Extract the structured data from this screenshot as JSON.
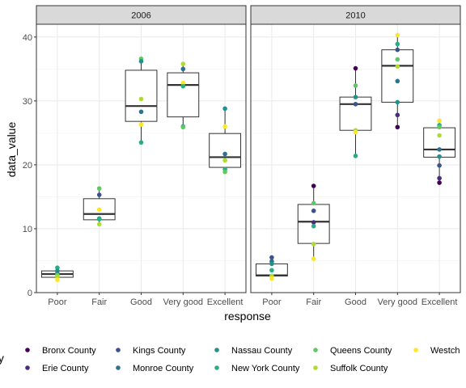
{
  "chart_data": {
    "type": "scatter",
    "overlay": "boxplot",
    "xlabel": "response",
    "ylabel": "data_value",
    "ylim": [
      0,
      42
    ],
    "yticks": [
      0,
      10,
      20,
      30,
      40
    ],
    "categories": [
      "Poor",
      "Fair",
      "Good",
      "Very good",
      "Excellent"
    ],
    "legend_position": "bottom",
    "legend_title": "ty",
    "grid": true,
    "series": [
      {
        "name": "Bronx County",
        "color": "#440154"
      },
      {
        "name": "Erie County",
        "color": "#472d7b"
      },
      {
        "name": "Kings County",
        "color": "#3b528b"
      },
      {
        "name": "Monroe County",
        "color": "#2c728e"
      },
      {
        "name": "Nassau County",
        "color": "#21918c"
      },
      {
        "name": "New York County",
        "color": "#28ae80"
      },
      {
        "name": "Queens County",
        "color": "#5ec962"
      },
      {
        "name": "Suffolk County",
        "color": "#addc30"
      },
      {
        "name": "Westch",
        "color": "#fde725"
      }
    ],
    "panels": [
      {
        "label": "2006",
        "boxes": [
          {
            "category": "Poor",
            "q1": 2.4,
            "median": 2.9,
            "q3": 3.4,
            "lower": 2.0,
            "upper": 3.9
          },
          {
            "category": "Fair",
            "q1": 11.4,
            "median": 12.3,
            "q3": 14.7,
            "lower": 10.7,
            "upper": 16.3
          },
          {
            "category": "Good",
            "q1": 26.8,
            "median": 29.2,
            "q3": 34.8,
            "lower": 23.5,
            "upper": 36.6
          },
          {
            "category": "Very good",
            "q1": 27.5,
            "median": 32.5,
            "q3": 34.4,
            "lower": 25.9,
            "upper": 35.8
          },
          {
            "category": "Excellent",
            "q1": 19.6,
            "median": 21.2,
            "q3": 24.9,
            "lower": 18.9,
            "upper": 28.8
          }
        ],
        "points": [
          {
            "category": "Poor",
            "county": "New York County",
            "value": 3.9
          },
          {
            "category": "Poor",
            "county": "Nassau County",
            "value": 3.4
          },
          {
            "category": "Poor",
            "county": "Monroe County",
            "value": 3.0
          },
          {
            "category": "Poor",
            "county": "Queens County",
            "value": 2.8
          },
          {
            "category": "Poor",
            "county": "Suffolk County",
            "value": 2.5
          },
          {
            "category": "Poor",
            "county": "Westch",
            "value": 2.0
          },
          {
            "category": "Fair",
            "county": "Queens County",
            "value": 16.3
          },
          {
            "category": "Fair",
            "county": "Kings County",
            "value": 15.3
          },
          {
            "category": "Fair",
            "county": "Westch",
            "value": 13.0
          },
          {
            "category": "Fair",
            "county": "Nassau County",
            "value": 11.6
          },
          {
            "category": "Fair",
            "county": "New York County",
            "value": 11.5
          },
          {
            "category": "Fair",
            "county": "Suffolk County",
            "value": 10.7
          },
          {
            "category": "Good",
            "county": "Queens County",
            "value": 36.6
          },
          {
            "category": "Good",
            "county": "Nassau County",
            "value": 36.2
          },
          {
            "category": "Good",
            "county": "Suffolk County",
            "value": 30.3
          },
          {
            "category": "Good",
            "county": "Monroe County",
            "value": 28.3
          },
          {
            "category": "Good",
            "county": "Westch",
            "value": 26.3
          },
          {
            "category": "Good",
            "county": "New York County",
            "value": 23.5
          },
          {
            "category": "Very good",
            "county": "Suffolk County",
            "value": 35.8
          },
          {
            "category": "Very good",
            "county": "Monroe County",
            "value": 35.0
          },
          {
            "category": "Very good",
            "county": "Westch",
            "value": 32.8
          },
          {
            "category": "Very good",
            "county": "New York County",
            "value": 32.3
          },
          {
            "category": "Very good",
            "county": "Nassau County",
            "value": 26.0
          },
          {
            "category": "Very good",
            "county": "Queens County",
            "value": 25.9
          },
          {
            "category": "Excellent",
            "county": "Nassau County",
            "value": 28.8
          },
          {
            "category": "Excellent",
            "county": "Westch",
            "value": 26.0
          },
          {
            "category": "Excellent",
            "county": "Monroe County",
            "value": 21.7
          },
          {
            "category": "Excellent",
            "county": "Suffolk County",
            "value": 20.7
          },
          {
            "category": "Excellent",
            "county": "New York County",
            "value": 19.3
          },
          {
            "category": "Excellent",
            "county": "Queens County",
            "value": 18.9
          }
        ]
      },
      {
        "label": "2010",
        "boxes": [
          {
            "category": "Poor",
            "q1": 2.6,
            "median": 2.7,
            "q3": 4.5,
            "lower": 2.2,
            "upper": 5.5
          },
          {
            "category": "Fair",
            "q1": 7.7,
            "median": 11.1,
            "q3": 13.8,
            "lower": 5.3,
            "upper": 16.7
          },
          {
            "category": "Good",
            "q1": 25.4,
            "median": 29.5,
            "q3": 30.6,
            "lower": 21.4,
            "upper": 35.1
          },
          {
            "category": "Very good",
            "q1": 29.8,
            "median": 35.5,
            "q3": 38.0,
            "lower": 25.9,
            "upper": 40.3
          },
          {
            "category": "Excellent",
            "q1": 21.2,
            "median": 22.4,
            "q3": 25.8,
            "lower": 17.2,
            "upper": 26.9
          }
        ],
        "points": [
          {
            "category": "Poor",
            "county": "Kings County",
            "value": 5.5
          },
          {
            "category": "Poor",
            "county": "Monroe County",
            "value": 4.9
          },
          {
            "category": "Poor",
            "county": "Nassau County",
            "value": 4.5
          },
          {
            "category": "Poor",
            "county": "New York County",
            "value": 3.5
          },
          {
            "category": "Poor",
            "county": "Suffolk County",
            "value": 2.6
          },
          {
            "category": "Poor",
            "county": "Westch",
            "value": 2.2
          },
          {
            "category": "Fair",
            "county": "Bronx County",
            "value": 16.7
          },
          {
            "category": "Fair",
            "county": "Queens County",
            "value": 14.0
          },
          {
            "category": "Fair",
            "county": "Kings County",
            "value": 12.8
          },
          {
            "category": "Fair",
            "county": "Erie County",
            "value": 11.0
          },
          {
            "category": "Fair",
            "county": "New York County",
            "value": 10.4
          },
          {
            "category": "Fair",
            "county": "Suffolk County",
            "value": 7.6
          },
          {
            "category": "Fair",
            "county": "Westch",
            "value": 5.3
          },
          {
            "category": "Good",
            "county": "Bronx County",
            "value": 35.1
          },
          {
            "category": "Good",
            "county": "Queens County",
            "value": 32.4
          },
          {
            "category": "Good",
            "county": "Nassau County",
            "value": 30.6
          },
          {
            "category": "Good",
            "county": "Kings County",
            "value": 29.5
          },
          {
            "category": "Good",
            "county": "Suffolk County",
            "value": 25.4
          },
          {
            "category": "Good",
            "county": "Westch",
            "value": 25.1
          },
          {
            "category": "Good",
            "county": "New York County",
            "value": 21.4
          },
          {
            "category": "Very good",
            "county": "Westch",
            "value": 40.3
          },
          {
            "category": "Very good",
            "county": "New York County",
            "value": 38.9
          },
          {
            "category": "Very good",
            "county": "Kings County",
            "value": 38.0
          },
          {
            "category": "Very good",
            "county": "Queens County",
            "value": 36.5
          },
          {
            "category": "Very good",
            "county": "Suffolk County",
            "value": 35.4
          },
          {
            "category": "Very good",
            "county": "Monroe County",
            "value": 33.1
          },
          {
            "category": "Very good",
            "county": "Nassau County",
            "value": 29.8
          },
          {
            "category": "Very good",
            "county": "Erie County",
            "value": 27.8
          },
          {
            "category": "Very good",
            "county": "Bronx County",
            "value": 25.9
          },
          {
            "category": "Excellent",
            "county": "Westch",
            "value": 26.9
          },
          {
            "category": "Excellent",
            "county": "New York County",
            "value": 26.2
          },
          {
            "category": "Excellent",
            "county": "Queens County",
            "value": 25.9
          },
          {
            "category": "Excellent",
            "county": "Suffolk County",
            "value": 24.6
          },
          {
            "category": "Excellent",
            "county": "Monroe County",
            "value": 22.4
          },
          {
            "category": "Excellent",
            "county": "Nassau County",
            "value": 21.3
          },
          {
            "category": "Excellent",
            "county": "Kings County",
            "value": 19.9
          },
          {
            "category": "Excellent",
            "county": "Erie County",
            "value": 17.9
          },
          {
            "category": "Excellent",
            "county": "Bronx County",
            "value": 17.2
          }
        ]
      }
    ]
  }
}
